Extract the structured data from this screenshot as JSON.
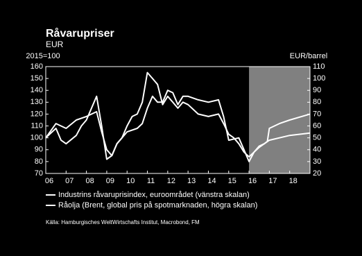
{
  "chart_data": {
    "type": "line",
    "title": "Råvarupriser",
    "subtitle": "EUR",
    "y_label": "2015=100",
    "y2_label": "EUR/barrel",
    "source": "Källa: Hamburgisches WeltWirtschafts Institut, Macrobond, FM",
    "xlim": [
      2006,
      2019
    ],
    "xticks": [
      {
        "value": 2006,
        "label": "06"
      },
      {
        "value": 2007,
        "label": "07"
      },
      {
        "value": 2008,
        "label": "08"
      },
      {
        "value": 2009,
        "label": "09"
      },
      {
        "value": 2010,
        "label": "10"
      },
      {
        "value": 2011,
        "label": "11"
      },
      {
        "value": 2012,
        "label": "12"
      },
      {
        "value": 2013,
        "label": "13"
      },
      {
        "value": 2014,
        "label": "14"
      },
      {
        "value": 2015,
        "label": "15"
      },
      {
        "value": 2016,
        "label": "16"
      },
      {
        "value": 2017,
        "label": "17"
      },
      {
        "value": 2018,
        "label": "18"
      }
    ],
    "ylim": [
      70,
      160
    ],
    "yticks": [
      70,
      80,
      90,
      100,
      110,
      120,
      130,
      140,
      150,
      160
    ],
    "y2lim": [
      20,
      110
    ],
    "y2ticks": [
      20,
      30,
      40,
      50,
      60,
      70,
      80,
      90,
      100,
      110
    ],
    "shade_from": 2016,
    "series": [
      {
        "name": "Industrins råvaruprisindex, euroområdet (vänstra skalan)",
        "color": "#ffffff",
        "x": [
          2006,
          2006.5,
          2007,
          2007.5,
          2008,
          2008.5,
          2008.75,
          2009,
          2009.25,
          2009.5,
          2009.75,
          2010,
          2010.25,
          2010.5,
          2010.75,
          2011,
          2011.25,
          2011.5,
          2011.75,
          2012,
          2012.25,
          2012.5,
          2012.75,
          2013,
          2013.5,
          2014,
          2014.5,
          2014.75,
          2015,
          2015.25,
          2015.5,
          2015.75,
          2016,
          2016.25,
          2016.5,
          2016.75,
          2017,
          2018,
          2019
        ],
        "values": [
          100,
          112,
          108,
          115,
          118,
          122,
          105,
          90,
          85,
          95,
          100,
          110,
          118,
          120,
          130,
          155,
          150,
          145,
          128,
          135,
          130,
          125,
          130,
          128,
          120,
          118,
          120,
          112,
          103,
          100,
          95,
          88,
          84,
          88,
          92,
          95,
          98,
          102,
          104
        ]
      },
      {
        "name": "Råolja (Brent, global pris på spotmarknaden, högra skalan)",
        "color": "#ffffff",
        "axis": "y2",
        "x": [
          2006,
          2006.5,
          2006.75,
          2007,
          2007.5,
          2007.75,
          2008,
          2008.5,
          2008.75,
          2009,
          2009.25,
          2009.5,
          2009.75,
          2010,
          2010.5,
          2010.75,
          2011,
          2011.25,
          2011.5,
          2011.75,
          2012,
          2012.25,
          2012.5,
          2012.75,
          2013,
          2013.5,
          2014,
          2014.5,
          2014.75,
          2015,
          2015.5,
          2015.75,
          2016,
          2016.25,
          2016.5,
          2016.75,
          2016.9,
          2017,
          2017.5,
          2018,
          2019
        ],
        "values": [
          50,
          58,
          48,
          45,
          52,
          60,
          65,
          85,
          60,
          32,
          35,
          45,
          50,
          55,
          58,
          62,
          75,
          85,
          80,
          80,
          90,
          88,
          78,
          85,
          85,
          82,
          80,
          82,
          68,
          48,
          50,
          40,
          30,
          38,
          43,
          45,
          47,
          58,
          62,
          65,
          70
        ]
      }
    ]
  }
}
